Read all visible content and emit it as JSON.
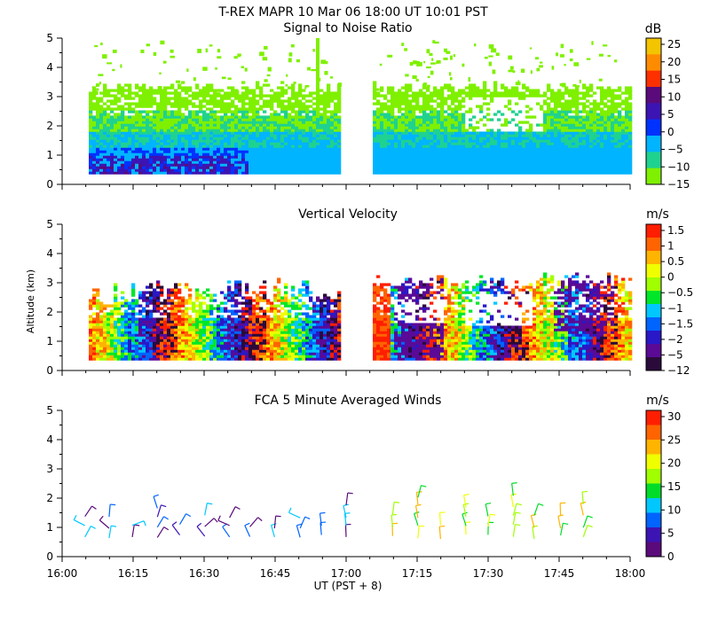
{
  "header": {
    "title": "T-REX   MAPR 10 Mar 06   18:00 UT   10:01   PST"
  },
  "x_axis": {
    "ticks": [
      "16:00",
      "16:15",
      "16:30",
      "16:45",
      "17:00",
      "17:15",
      "17:30",
      "17:45",
      "18:00"
    ],
    "label": "UT  (PST + 8)"
  },
  "shared_ylabel": "Altitude (km)",
  "chart_data": [
    {
      "type": "heatmap",
      "title": "Signal to Noise Ratio",
      "units": "dB",
      "xlim": [
        "16:00",
        "18:00"
      ],
      "ylim": [
        0,
        5
      ],
      "yticks": [
        "0",
        "1",
        "2",
        "3",
        "4",
        "5"
      ],
      "data_gap": [
        "17:00",
        "17:05"
      ],
      "colorbar": {
        "labels": [
          "25",
          "20",
          "15",
          "10",
          "5",
          "0",
          "−5",
          "−10",
          "−15"
        ],
        "colors": [
          "#f3c400",
          "#ff8c00",
          "#ff3000",
          "#5a0a7a",
          "#3c14b4",
          "#0032ff",
          "#00b4ff",
          "#1fd290",
          "#7ff000"
        ]
      }
    },
    {
      "type": "heatmap",
      "title": "Vertical Velocity",
      "units": "m/s",
      "xlim": [
        "16:00",
        "18:00"
      ],
      "ylim": [
        0,
        5
      ],
      "yticks": [
        "0",
        "1",
        "2",
        "3",
        "4",
        "5"
      ],
      "data_gap": [
        "17:00",
        "17:05"
      ],
      "colorbar": {
        "labels": [
          "1.5",
          "1",
          "0.5",
          "0",
          "−0.5",
          "−1",
          "−1.5",
          "−2",
          "−5",
          "−12"
        ],
        "colors": [
          "#ff1e00",
          "#ff6400",
          "#ffb400",
          "#f0ff00",
          "#a0ff00",
          "#00e628",
          "#00c8ff",
          "#0064ff",
          "#2818c8",
          "#5a0a96",
          "#2a0a3a"
        ]
      }
    },
    {
      "type": "wind_barbs",
      "title": "FCA 5 Minute Averaged Winds",
      "units": "m/s",
      "xlim": [
        "16:00",
        "18:00"
      ],
      "ylim": [
        0,
        5
      ],
      "yticks": [
        "0",
        "1",
        "2",
        "3",
        "4",
        "5"
      ],
      "colorbar": {
        "labels": [
          "30",
          "25",
          "20",
          "15",
          "10",
          "5",
          "0"
        ],
        "colors": [
          "#ff1e00",
          "#ff6400",
          "#ffb400",
          "#f0ff00",
          "#a0ff00",
          "#00dc28",
          "#00c8ff",
          "#0064ff",
          "#3c14b4",
          "#5a0a7a"
        ]
      }
    }
  ]
}
